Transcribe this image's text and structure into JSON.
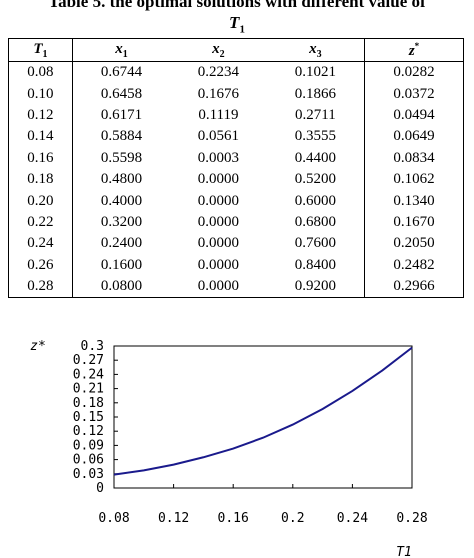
{
  "table": {
    "title": "Table 5. the optimal solutions with different value of",
    "subtitle_var": "T",
    "subtitle_sub": "1",
    "headers": [
      {
        "var": "T",
        "sub": "1",
        "sup": ""
      },
      {
        "var": "x",
        "sub": "1",
        "sup": ""
      },
      {
        "var": "x",
        "sub": "2",
        "sup": ""
      },
      {
        "var": "x",
        "sub": "3",
        "sup": ""
      },
      {
        "var": "z",
        "sub": "",
        "sup": "*"
      }
    ],
    "rows": [
      [
        "0.08",
        "0.6744",
        "0.2234",
        "0.1021",
        "0.0282"
      ],
      [
        "0.10",
        "0.6458",
        "0.1676",
        "0.1866",
        "0.0372"
      ],
      [
        "0.12",
        "0.6171",
        "0.1119",
        "0.2711",
        "0.0494"
      ],
      [
        "0.14",
        "0.5884",
        "0.0561",
        "0.3555",
        "0.0649"
      ],
      [
        "0.16",
        "0.5598",
        "0.0003",
        "0.4400",
        "0.0834"
      ],
      [
        "0.18",
        "0.4800",
        "0.0000",
        "0.5200",
        "0.1062"
      ],
      [
        "0.20",
        "0.4000",
        "0.0000",
        "0.6000",
        "0.1340"
      ],
      [
        "0.22",
        "0.3200",
        "0.0000",
        "0.6800",
        "0.1670"
      ],
      [
        "0.24",
        "0.2400",
        "0.0000",
        "0.7600",
        "0.2050"
      ],
      [
        "0.26",
        "0.1600",
        "0.0000",
        "0.8400",
        "0.2482"
      ],
      [
        "0.28",
        "0.0800",
        "0.0000",
        "0.9200",
        "0.2966"
      ]
    ]
  },
  "chart_data": {
    "type": "line",
    "ylabel": "z*",
    "xlabel": "T1",
    "x": [
      0.08,
      0.1,
      0.12,
      0.14,
      0.16,
      0.18,
      0.2,
      0.22,
      0.24,
      0.26,
      0.28
    ],
    "series": [
      {
        "values": [
          0.0282,
          0.0372,
          0.0494,
          0.0649,
          0.0834,
          0.1062,
          0.134,
          0.167,
          0.205,
          0.2482,
          0.2966
        ],
        "color": "#1a1a8c"
      }
    ],
    "xlim": [
      0.08,
      0.28
    ],
    "ylim": [
      0,
      0.3
    ],
    "xticks": [
      "0.08",
      "0.12",
      "0.16",
      "0.2",
      "0.24",
      "0.28"
    ],
    "yticks": [
      "0",
      "0.03",
      "0.06",
      "0.09",
      "0.12",
      "0.15",
      "0.18",
      "0.21",
      "0.24",
      "0.27",
      "0.3"
    ],
    "grid": false
  }
}
